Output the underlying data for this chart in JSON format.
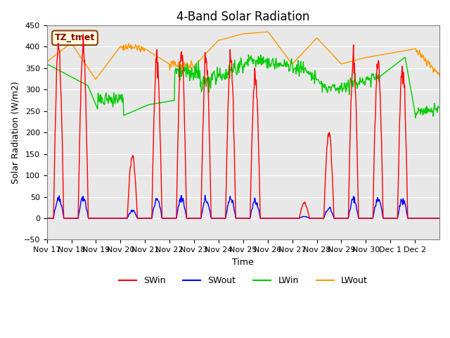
{
  "title": "4-Band Solar Radiation",
  "ylabel": "Solar Radiation (W/m2)",
  "xlabel": "Time",
  "annotation": "TZ_tmet",
  "ylim": [
    -50,
    450
  ],
  "yticks": [
    -50,
    0,
    50,
    100,
    150,
    200,
    250,
    300,
    350,
    400,
    450
  ],
  "xtick_positions": [
    0,
    1,
    2,
    3,
    4,
    5,
    6,
    7,
    8,
    9,
    10,
    11,
    12,
    13,
    14,
    15
  ],
  "xtick_labels": [
    "Nov 17",
    "Nov 18",
    "Nov 19",
    "Nov 20",
    "Nov 21",
    "Nov 22",
    "Nov 23",
    "Nov 24",
    "Nov 25",
    "Nov 26",
    "Nov 27",
    "Nov 28",
    "Nov 29",
    "Nov 30",
    "Dec 1",
    "Dec 2"
  ],
  "colors": {
    "SWin": "#ff0000",
    "SWout": "#0000ff",
    "LWin": "#00cc00",
    "LWout": "#ff9900"
  },
  "bg_color": "#e8e8e8",
  "title_fontsize": 12,
  "axis_fontsize": 9,
  "tick_fontsize": 8,
  "n_days": 16,
  "pts_per_day": 48
}
